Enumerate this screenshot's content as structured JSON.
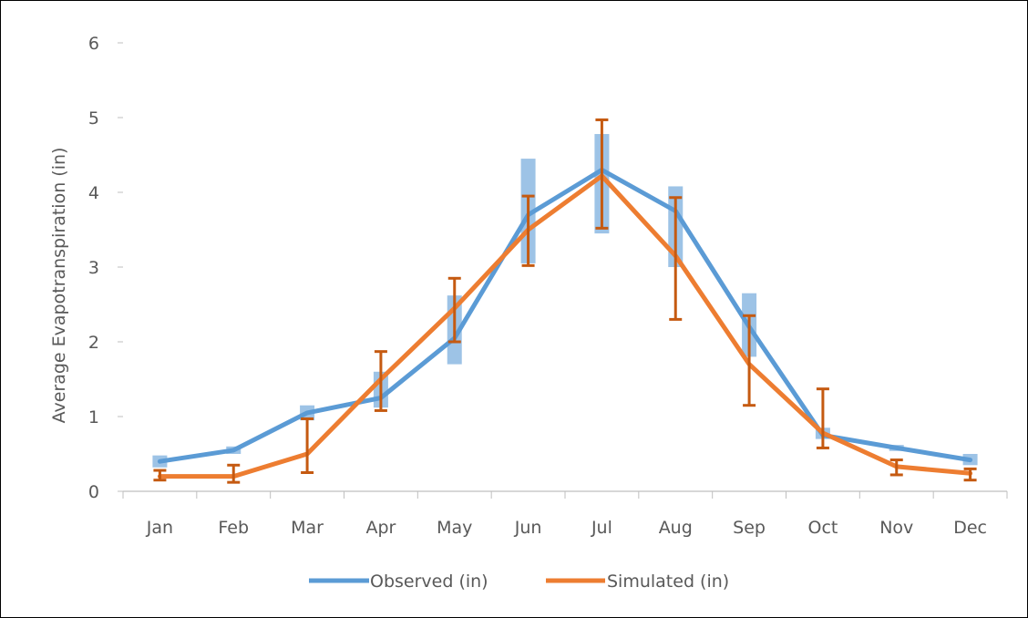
{
  "chart_data": {
    "type": "line",
    "title": "",
    "xlabel": "",
    "ylabel": "Average Evapotranspiration (in)",
    "categories": [
      "Jan",
      "Feb",
      "Mar",
      "Apr",
      "May",
      "Jun",
      "Jul",
      "Aug",
      "Sep",
      "Oct",
      "Nov",
      "Dec"
    ],
    "ylim": [
      0,
      6
    ],
    "yticks": [
      0,
      1,
      2,
      3,
      4,
      5,
      6
    ],
    "grid": false,
    "legend": "bottom",
    "series": [
      {
        "name": "Observed (in)",
        "color": "#5B9BD5",
        "error_style": "box",
        "error_color": "#9DC3E6",
        "values": [
          0.4,
          0.55,
          1.05,
          1.25,
          2.05,
          3.7,
          4.3,
          3.75,
          2.2,
          0.75,
          0.58,
          0.42
        ],
        "error_low": [
          0.32,
          0.5,
          0.95,
          1.12,
          1.7,
          3.05,
          3.45,
          3.0,
          1.8,
          0.7,
          0.54,
          0.35
        ],
        "error_high": [
          0.48,
          0.6,
          1.15,
          1.6,
          2.62,
          4.45,
          4.78,
          4.08,
          2.65,
          0.85,
          0.62,
          0.5
        ]
      },
      {
        "name": "Simulated (in)",
        "color": "#ED7D31",
        "error_style": "capped",
        "error_color": "#C55A11",
        "values": [
          0.2,
          0.2,
          0.5,
          1.5,
          2.45,
          3.5,
          4.22,
          3.15,
          1.7,
          0.78,
          0.33,
          0.24
        ],
        "error_low": [
          0.15,
          0.12,
          0.25,
          1.08,
          2.0,
          3.02,
          3.52,
          2.3,
          1.15,
          0.58,
          0.22,
          0.15
        ],
        "error_high": [
          0.28,
          0.35,
          0.97,
          1.87,
          2.85,
          3.95,
          4.97,
          3.93,
          2.35,
          1.37,
          0.42,
          0.3
        ]
      }
    ]
  }
}
